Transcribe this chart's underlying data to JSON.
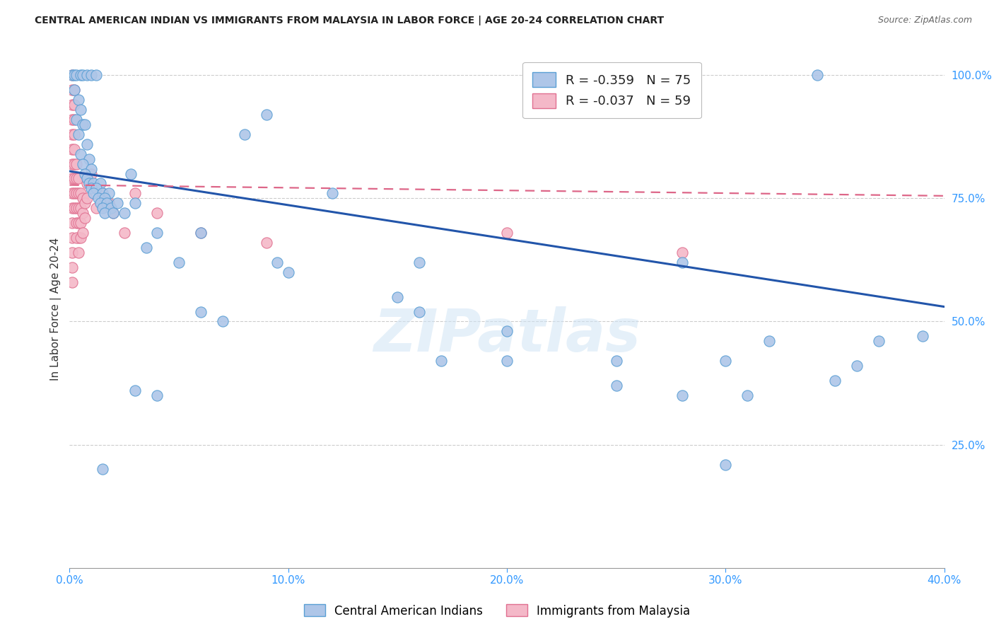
{
  "title": "CENTRAL AMERICAN INDIAN VS IMMIGRANTS FROM MALAYSIA IN LABOR FORCE | AGE 20-24 CORRELATION CHART",
  "source": "Source: ZipAtlas.com",
  "ylabel": "In Labor Force | Age 20-24",
  "xlim": [
    0.0,
    0.4
  ],
  "ylim": [
    0.0,
    1.05
  ],
  "xtick_vals": [
    0.0,
    0.1,
    0.2,
    0.3,
    0.4
  ],
  "xtick_labels": [
    "0.0%",
    "10.0%",
    "20.0%",
    "30.0%",
    "40.0%"
  ],
  "ytick_vals": [
    0.25,
    0.5,
    0.75,
    1.0
  ],
  "ytick_labels": [
    "25.0%",
    "50.0%",
    "75.0%",
    "100.0%"
  ],
  "grid_color": "#cccccc",
  "background_color": "#ffffff",
  "blue_color": "#aec6e8",
  "blue_edge_color": "#5a9fd4",
  "pink_color": "#f4b8c8",
  "pink_edge_color": "#e07090",
  "blue_line_color": "#2255aa",
  "pink_line_color": "#dd6688",
  "legend_blue_R": "-0.359",
  "legend_blue_N": "75",
  "legend_pink_R": "-0.037",
  "legend_pink_N": "59",
  "watermark": "ZIPatlas",
  "blue_trendline_x": [
    0.0,
    0.4
  ],
  "blue_trendline_y": [
    0.805,
    0.53
  ],
  "pink_trendline_x": [
    0.0,
    0.4
  ],
  "pink_trendline_y": [
    0.777,
    0.755
  ],
  "blue_points": [
    [
      0.001,
      1.0
    ],
    [
      0.002,
      1.0
    ],
    [
      0.003,
      1.0
    ],
    [
      0.005,
      1.0
    ],
    [
      0.006,
      1.0
    ],
    [
      0.008,
      1.0
    ],
    [
      0.01,
      1.0
    ],
    [
      0.012,
      1.0
    ],
    [
      0.342,
      1.0
    ],
    [
      0.002,
      0.97
    ],
    [
      0.004,
      0.95
    ],
    [
      0.005,
      0.93
    ],
    [
      0.003,
      0.91
    ],
    [
      0.006,
      0.9
    ],
    [
      0.007,
      0.9
    ],
    [
      0.004,
      0.88
    ],
    [
      0.008,
      0.86
    ],
    [
      0.005,
      0.84
    ],
    [
      0.009,
      0.83
    ],
    [
      0.006,
      0.82
    ],
    [
      0.01,
      0.81
    ],
    [
      0.007,
      0.8
    ],
    [
      0.008,
      0.79
    ],
    [
      0.009,
      0.78
    ],
    [
      0.011,
      0.78
    ],
    [
      0.014,
      0.78
    ],
    [
      0.01,
      0.77
    ],
    [
      0.012,
      0.77
    ],
    [
      0.011,
      0.76
    ],
    [
      0.015,
      0.76
    ],
    [
      0.018,
      0.76
    ],
    [
      0.12,
      0.76
    ],
    [
      0.013,
      0.75
    ],
    [
      0.016,
      0.75
    ],
    [
      0.014,
      0.74
    ],
    [
      0.017,
      0.74
    ],
    [
      0.015,
      0.73
    ],
    [
      0.019,
      0.73
    ],
    [
      0.016,
      0.72
    ],
    [
      0.02,
      0.72
    ],
    [
      0.022,
      0.74
    ],
    [
      0.025,
      0.72
    ],
    [
      0.028,
      0.8
    ],
    [
      0.03,
      0.74
    ],
    [
      0.035,
      0.65
    ],
    [
      0.04,
      0.68
    ],
    [
      0.05,
      0.62
    ],
    [
      0.06,
      0.68
    ],
    [
      0.06,
      0.52
    ],
    [
      0.07,
      0.5
    ],
    [
      0.08,
      0.88
    ],
    [
      0.09,
      0.92
    ],
    [
      0.095,
      0.62
    ],
    [
      0.1,
      0.6
    ],
    [
      0.15,
      0.55
    ],
    [
      0.16,
      0.62
    ],
    [
      0.16,
      0.52
    ],
    [
      0.17,
      0.42
    ],
    [
      0.2,
      0.48
    ],
    [
      0.2,
      0.42
    ],
    [
      0.25,
      0.42
    ],
    [
      0.28,
      0.62
    ],
    [
      0.3,
      0.42
    ],
    [
      0.32,
      0.46
    ],
    [
      0.35,
      0.38
    ],
    [
      0.36,
      0.41
    ],
    [
      0.37,
      0.46
    ],
    [
      0.39,
      0.47
    ],
    [
      0.015,
      0.2
    ],
    [
      0.3,
      0.21
    ],
    [
      0.03,
      0.36
    ],
    [
      0.04,
      0.35
    ],
    [
      0.25,
      0.37
    ],
    [
      0.28,
      0.35
    ],
    [
      0.31,
      0.35
    ]
  ],
  "pink_points": [
    [
      0.001,
      1.0
    ],
    [
      0.001,
      0.97
    ],
    [
      0.001,
      0.94
    ],
    [
      0.001,
      0.91
    ],
    [
      0.001,
      0.88
    ],
    [
      0.001,
      0.85
    ],
    [
      0.001,
      0.82
    ],
    [
      0.001,
      0.79
    ],
    [
      0.001,
      0.76
    ],
    [
      0.001,
      0.73
    ],
    [
      0.001,
      0.7
    ],
    [
      0.001,
      0.67
    ],
    [
      0.001,
      0.64
    ],
    [
      0.001,
      0.61
    ],
    [
      0.001,
      0.58
    ],
    [
      0.002,
      0.97
    ],
    [
      0.002,
      0.94
    ],
    [
      0.002,
      0.91
    ],
    [
      0.002,
      0.88
    ],
    [
      0.002,
      0.85
    ],
    [
      0.002,
      0.82
    ],
    [
      0.002,
      0.79
    ],
    [
      0.002,
      0.76
    ],
    [
      0.002,
      0.73
    ],
    [
      0.003,
      0.82
    ],
    [
      0.003,
      0.79
    ],
    [
      0.003,
      0.76
    ],
    [
      0.003,
      0.73
    ],
    [
      0.003,
      0.7
    ],
    [
      0.004,
      0.79
    ],
    [
      0.004,
      0.76
    ],
    [
      0.004,
      0.73
    ],
    [
      0.004,
      0.7
    ],
    [
      0.004,
      0.67
    ],
    [
      0.005,
      0.76
    ],
    [
      0.005,
      0.73
    ],
    [
      0.005,
      0.7
    ],
    [
      0.006,
      0.75
    ],
    [
      0.006,
      0.72
    ],
    [
      0.007,
      0.74
    ],
    [
      0.007,
      0.71
    ],
    [
      0.008,
      0.78
    ],
    [
      0.008,
      0.75
    ],
    [
      0.01,
      0.8
    ],
    [
      0.012,
      0.73
    ],
    [
      0.015,
      0.76
    ],
    [
      0.018,
      0.74
    ],
    [
      0.02,
      0.72
    ],
    [
      0.025,
      0.68
    ],
    [
      0.03,
      0.76
    ],
    [
      0.04,
      0.72
    ],
    [
      0.06,
      0.68
    ],
    [
      0.09,
      0.66
    ],
    [
      0.2,
      0.68
    ],
    [
      0.28,
      0.64
    ],
    [
      0.004,
      0.64
    ],
    [
      0.003,
      0.67
    ],
    [
      0.005,
      0.67
    ],
    [
      0.006,
      0.68
    ]
  ]
}
